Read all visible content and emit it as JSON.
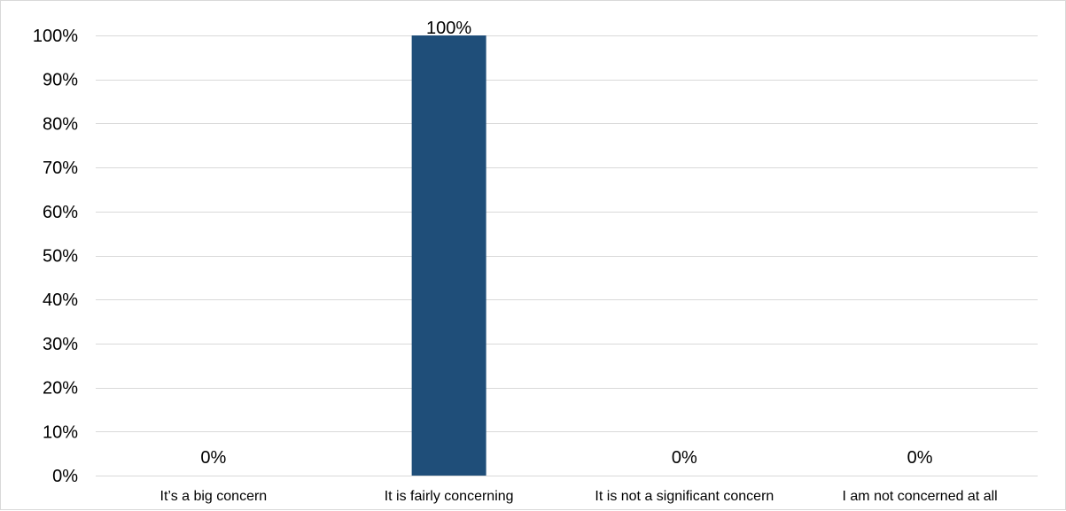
{
  "chart_data": {
    "type": "bar",
    "title": "",
    "xlabel": "",
    "ylabel": "",
    "categories": [
      "It’s a big concern",
      "It is fairly concerning",
      "It is not a significant concern",
      "I am not concerned at all"
    ],
    "values": [
      0,
      100,
      0,
      0
    ],
    "data_labels": [
      "0%",
      "100%",
      "0%",
      "0%"
    ],
    "ylim": [
      0,
      100
    ],
    "yticks": [
      0,
      10,
      20,
      30,
      40,
      50,
      60,
      70,
      80,
      90,
      100
    ],
    "ytick_labels": [
      "0%",
      "10%",
      "20%",
      "30%",
      "40%",
      "50%",
      "60%",
      "70%",
      "80%",
      "90%",
      "100%"
    ],
    "grid": true,
    "legend": "none",
    "bar_color": "#1f4e79"
  }
}
